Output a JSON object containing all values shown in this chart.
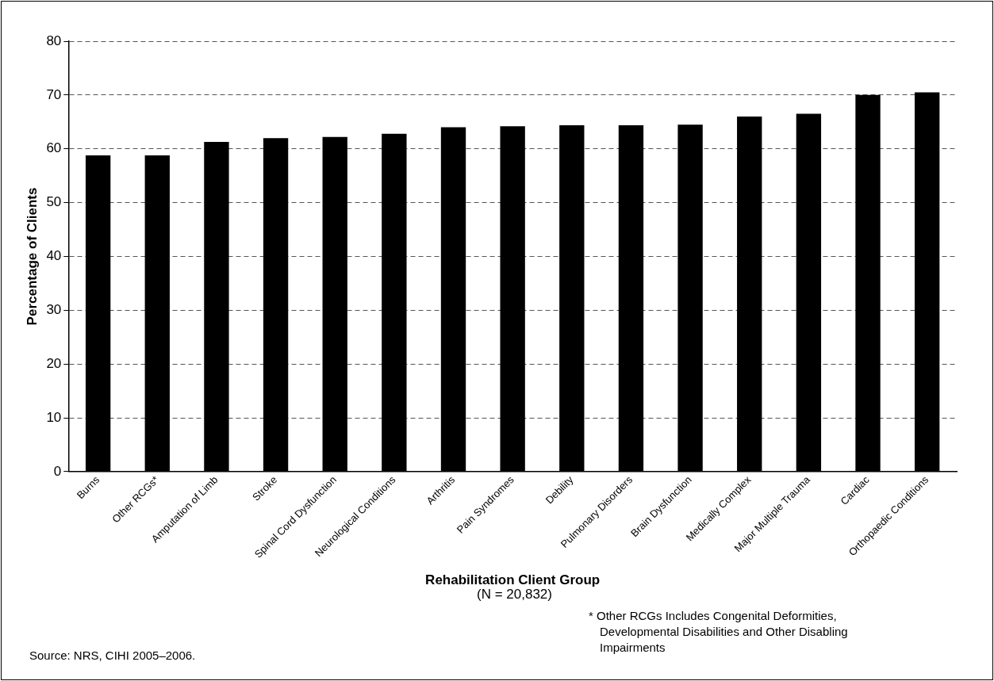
{
  "chart_data": {
    "type": "bar",
    "xlabel": "Rehabilitation Client Group",
    "ylabel": "Percentage of Clients",
    "categories": [
      "Burns",
      "Other RCGs*",
      "Amputation of Limb",
      "Stroke",
      "Spinal Cord Dysfunction",
      "Neurological Conditions",
      "Arthritis",
      "Pain Syndromes",
      "Debility",
      "Pulmonary Disorders",
      "Brain Dysfunction",
      "Medically Complex",
      "Major Multiple Trauma",
      "Cardiac",
      "Orthopaedic Conditions"
    ],
    "values": [
      58.8,
      58.8,
      61.3,
      62.0,
      62.2,
      62.8,
      64.0,
      64.2,
      64.4,
      64.4,
      64.5,
      66.0,
      66.5,
      70.0,
      70.5
    ],
    "color": "#000000",
    "ylim": [
      0,
      80
    ],
    "yticks": [
      0,
      10,
      20,
      30,
      40,
      50,
      60,
      70,
      80
    ],
    "grid": "y",
    "legend": false,
    "annotations": [
      "(N = 20,832)",
      "* Other RCGs Includes Congenital Deformities, Developmental Disabilities and Other Disabling Impairments",
      "Source: NRS, CIHI 2005–2006."
    ]
  }
}
